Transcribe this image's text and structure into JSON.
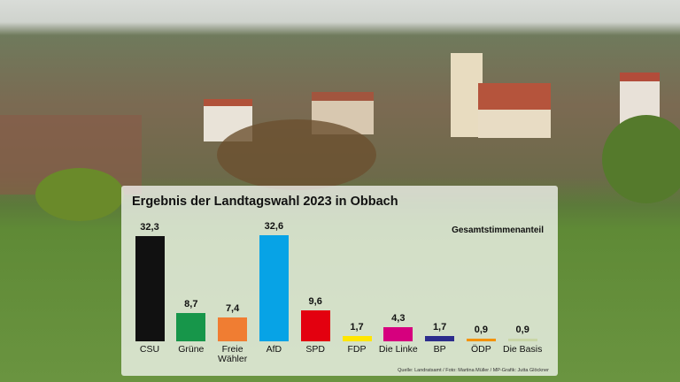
{
  "chart_data": {
    "type": "bar",
    "title": "Ergebnis der Landtagswahl 2023 in Obbach",
    "subtitle": "Gesamtstimmenanteil",
    "source": "Quelle: Landratsamt / Foto: Martina Müller / MP-Grafik: Jutta Glöckner",
    "categories": [
      "CSU",
      "Grüne",
      "Freie Wähler",
      "AfD",
      "SPD",
      "FDP",
      "Die Linke",
      "BP",
      "ÖDP",
      "Die Basis"
    ],
    "values": [
      32.3,
      8.7,
      7.4,
      32.6,
      9.6,
      1.7,
      4.3,
      1.7,
      0.9,
      0.9
    ],
    "value_labels": [
      "32,3",
      "8,7",
      "7,4",
      "32,6",
      "9,6",
      "1,7",
      "4,3",
      "1,7",
      "0,9",
      "0,9"
    ],
    "colors": [
      "#111111",
      "#17964a",
      "#f07d32",
      "#07a3e6",
      "#e3000f",
      "#ffe600",
      "#d6007e",
      "#2c2c8c",
      "#f39200",
      "#c9d6a6"
    ]
  }
}
